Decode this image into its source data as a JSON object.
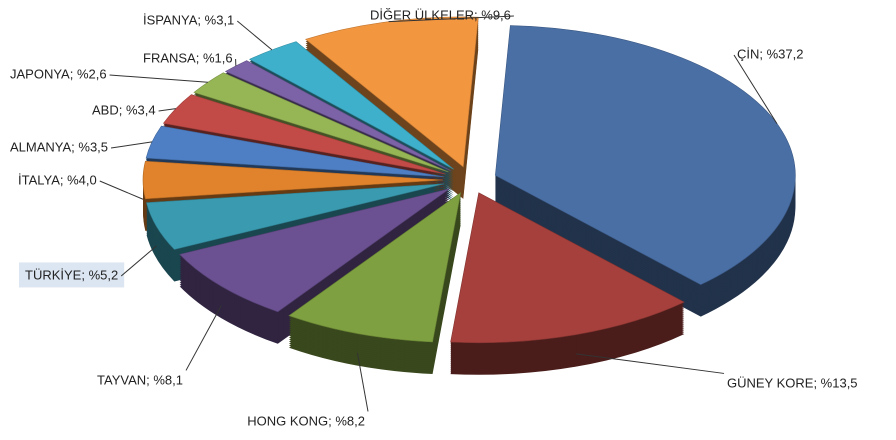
{
  "chart_data": {
    "type": "pie",
    "values": [
      37.2,
      13.5,
      8.2,
      8.1,
      5.2,
      4.0,
      3.5,
      3.4,
      2.6,
      1.6,
      3.1,
      9.6
    ],
    "value_labels": [
      "ÇİN; %37,2",
      "GÜNEY KORE; %13,5",
      "HONG KONG; %8,2",
      "TAYVAN; %8,1",
      "TÜRKİYE; %5,2",
      "İTALYA; %4,0",
      "ALMANYA; %3,5",
      "ABD; %3,4",
      "JAPONYA; %2,6",
      "FRANSA; %1,6",
      "İSPANYA; %3,1",
      "DİĞER ÜLKELER; %9,6"
    ],
    "colors": [
      "#4a6fa5",
      "#a5403c",
      "#7ea040",
      "#6b5191",
      "#3a9bb0",
      "#e0832c",
      "#4e7fc4",
      "#c24b47",
      "#96b655",
      "#7c62a6",
      "#3fb0cb",
      "#f29640"
    ]
  }
}
